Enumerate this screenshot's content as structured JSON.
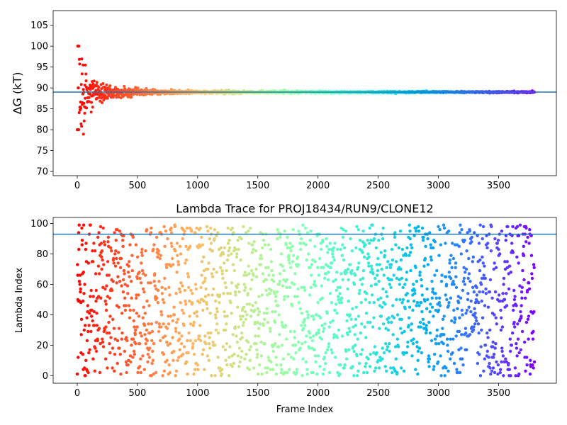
{
  "chart_data": [
    {
      "type": "scatter",
      "title": "",
      "xlabel": "",
      "ylabel": "ΔG (kT)",
      "xlim": [
        -200,
        3980
      ],
      "ylim": [
        69,
        108.5
      ],
      "xticks": [
        0,
        500,
        1000,
        1500,
        2000,
        2500,
        3000,
        3500
      ],
      "yticks": [
        70,
        75,
        80,
        85,
        90,
        95,
        100,
        105
      ],
      "n_frames": 3800,
      "colormap": "rainbow-reversed",
      "reference_line": {
        "y": 89.0,
        "color": "#1f77b4"
      },
      "grid": false,
      "series": [
        {
          "points_sample": [
            {
              "x": 0,
              "y": 100
            },
            {
              "x": 10,
              "y": 80
            },
            {
              "x": 15,
              "y": 90
            },
            {
              "x": 25,
              "y": 82
            },
            {
              "x": 35,
              "y": 97
            },
            {
              "x": 40,
              "y": 78
            },
            {
              "x": 60,
              "y": 93
            },
            {
              "x": 80,
              "y": 86
            },
            {
              "x": 120,
              "y": 91
            },
            {
              "x": 220,
              "y": 87
            },
            {
              "x": 300,
              "y": 89.5
            },
            {
              "x": 1000,
              "y": 89.0
            },
            {
              "x": 3800,
              "y": 89.0
            }
          ]
        }
      ]
    },
    {
      "type": "scatter",
      "title": "Lambda Trace for PROJ18434/RUN9/CLONE12",
      "xlabel": "Frame Index",
      "ylabel": "Lambda Index",
      "xlim": [
        -200,
        3980
      ],
      "ylim": [
        -5,
        104
      ],
      "xticks": [
        0,
        500,
        1000,
        1500,
        2000,
        2500,
        3000,
        3500
      ],
      "yticks": [
        0,
        20,
        40,
        60,
        80,
        100
      ],
      "n_frames": 3800,
      "value_range": [
        0,
        99
      ],
      "colormap": "rainbow-reversed",
      "reference_line": {
        "y": 93,
        "color": "#1f77b4"
      },
      "grid": false
    }
  ]
}
